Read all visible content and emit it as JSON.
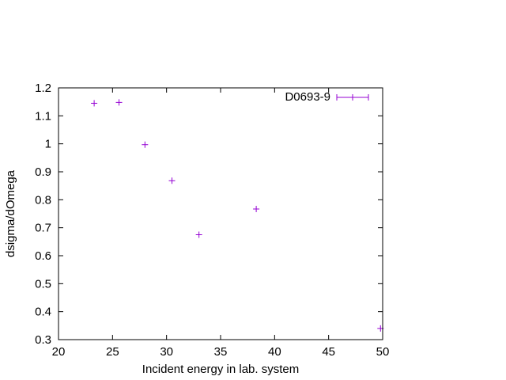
{
  "chart_data": {
    "type": "scatter",
    "title": "",
    "xlabel": "Incident energy in lab. system",
    "ylabel": "dsigma/dOmega",
    "xlim": [
      20,
      50
    ],
    "ylim": [
      0.3,
      1.2
    ],
    "xticks": [
      "20",
      "25",
      "30",
      "35",
      "40",
      "45",
      "50"
    ],
    "yticks": [
      "0.3",
      "0.4",
      "0.5",
      "0.6",
      "0.7",
      "0.8",
      "0.9",
      "1",
      "1.1",
      "1.2"
    ],
    "grid": false,
    "legend": "top-right",
    "series": [
      {
        "name": "D0693-9",
        "color": "#9400d3",
        "marker": "plus",
        "x": [
          23.3,
          25.6,
          28.0,
          30.5,
          33.0,
          38.3,
          49.8
        ],
        "y": [
          1.145,
          1.148,
          0.997,
          0.868,
          0.675,
          0.767,
          0.34
        ]
      }
    ]
  }
}
